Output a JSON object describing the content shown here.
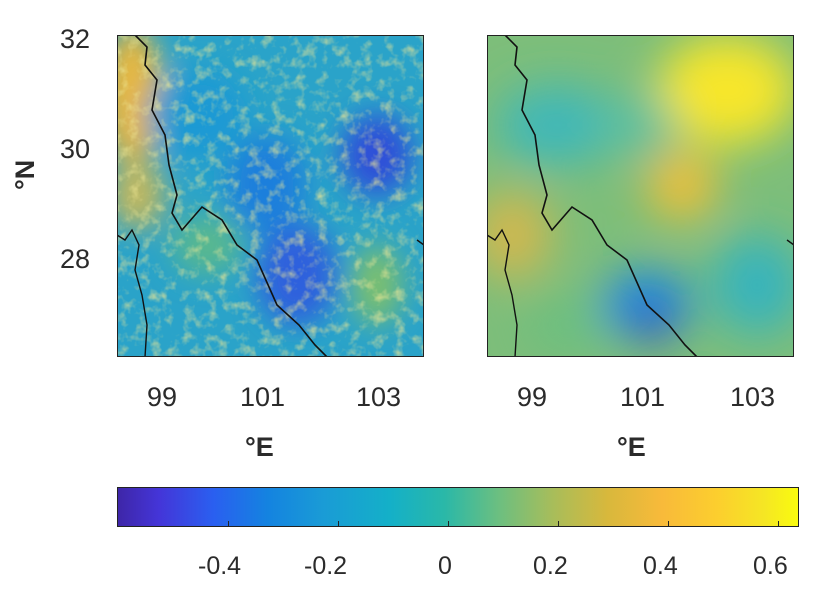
{
  "left_map": {
    "y_ticks": [
      "32",
      "30",
      "28"
    ],
    "x_ticks": [
      "99",
      "101",
      "103"
    ],
    "x_label": "°E",
    "y_label": "°N"
  },
  "right_map": {
    "x_ticks": [
      "99",
      "101",
      "103"
    ],
    "x_label": "°E"
  },
  "colorbar": {
    "ticks": [
      "-0.4",
      "-0.2",
      "0",
      "0.2",
      "0.4",
      "0.6"
    ],
    "colormap": "parula",
    "colors": [
      "#3e26a8",
      "#1483e0",
      "#14b0c8",
      "#a8bd5a",
      "#fcce2e",
      "#f9fb0e"
    ]
  }
}
